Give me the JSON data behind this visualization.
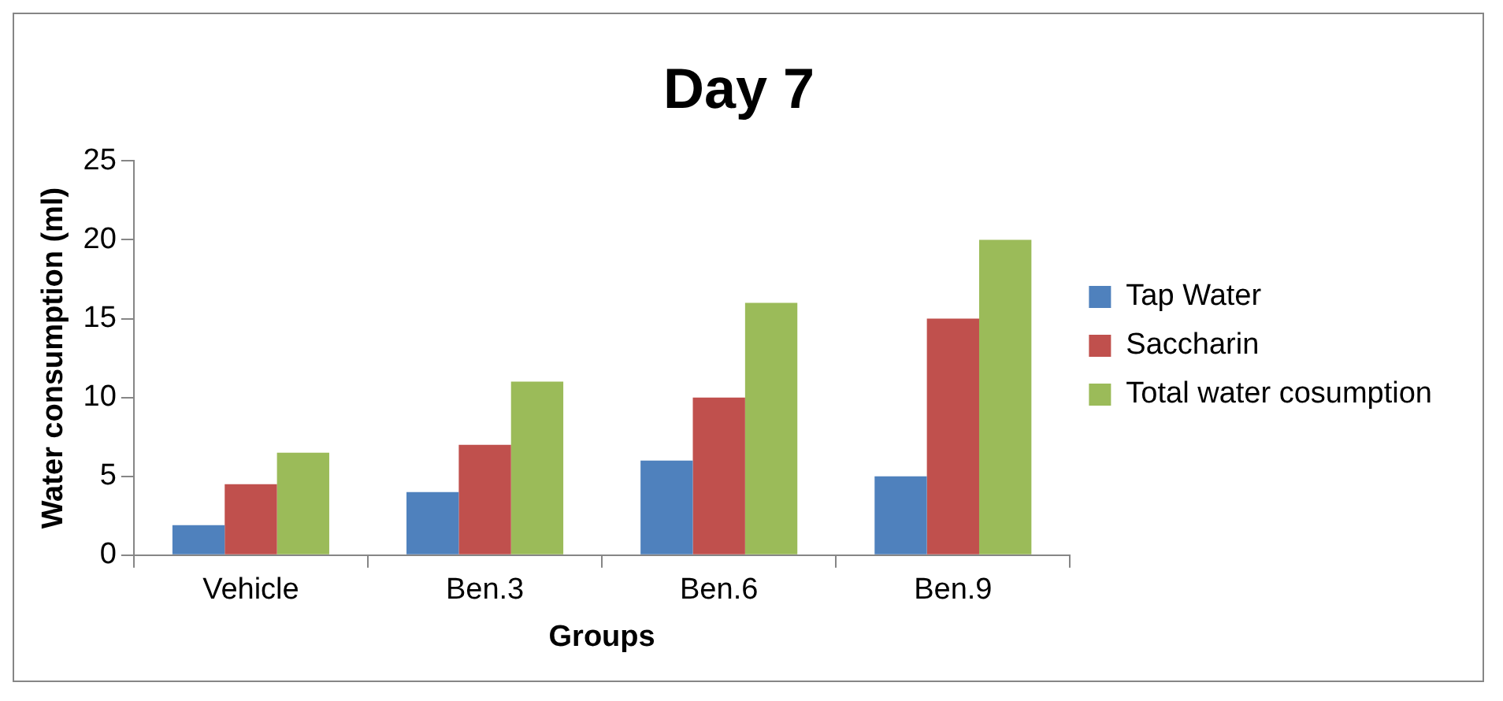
{
  "chart_data": {
    "type": "bar",
    "title": "Day 7",
    "xlabel": "Groups",
    "ylabel": "Water consumption (ml)",
    "categories": [
      "Vehicle",
      "Ben.3",
      "Ben.6",
      "Ben.9"
    ],
    "series": [
      {
        "name": "Tap Water",
        "color": "#4f81bd",
        "values": [
          1.9,
          4,
          6,
          5
        ]
      },
      {
        "name": "Saccharin",
        "color": "#c0504d",
        "values": [
          4.5,
          7,
          10,
          15
        ]
      },
      {
        "name": "Total water cosumption",
        "color": "#9bbb59",
        "values": [
          6.5,
          11,
          16,
          20
        ]
      }
    ],
    "ylim": [
      0,
      25
    ],
    "yticks": [
      0,
      5,
      10,
      15,
      20,
      25
    ],
    "grid": false,
    "legend": "right"
  }
}
